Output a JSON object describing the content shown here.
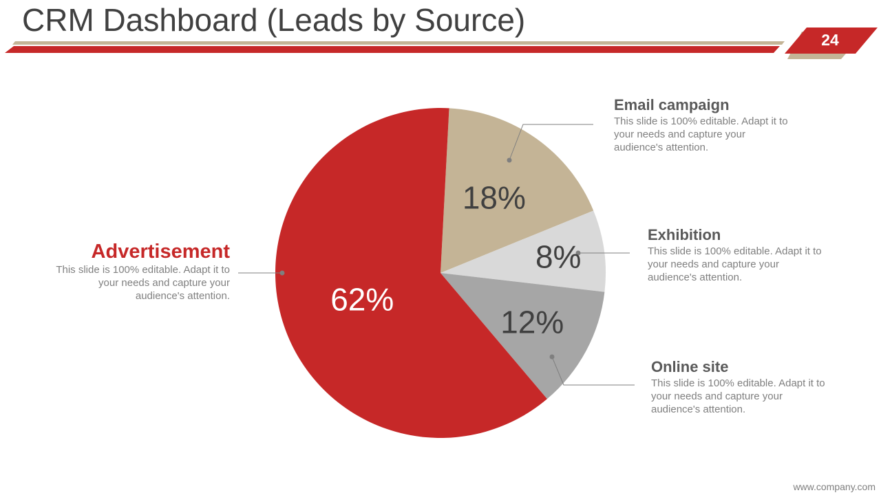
{
  "slide": {
    "title": "CRM Dashboard (Leads by Source)",
    "page_number": "24",
    "footer": "www.company.com"
  },
  "colors": {
    "accent_red": "#C62828",
    "tan": "#C4B496",
    "light_gray": "#D9D9D9",
    "mid_gray": "#A6A6A6",
    "title_text": "#404040",
    "body_text": "#7F7F7F"
  },
  "chart_data": {
    "type": "pie",
    "title": "",
    "slices": [
      {
        "label": "Email campaign",
        "value": 18,
        "display": "18%",
        "color": "#C4B496",
        "description": "This slide is 100% editable. Adapt it to your needs and capture your audience's attention."
      },
      {
        "label": "Exhibition",
        "value": 8,
        "display": "8%",
        "color": "#D9D9D9",
        "description": "This slide is 100% editable. Adapt it to your needs and capture your audience's attention."
      },
      {
        "label": "Online site",
        "value": 12,
        "display": "12%",
        "color": "#A6A6A6",
        "description": "This slide is 100% editable. Adapt it to your needs and capture your audience's attention."
      },
      {
        "label": "Advertisement",
        "value": 62,
        "display": "62%",
        "color": "#C62828",
        "description": "This slide is 100% editable. Adapt it to your needs and capture your audience's attention."
      }
    ]
  }
}
